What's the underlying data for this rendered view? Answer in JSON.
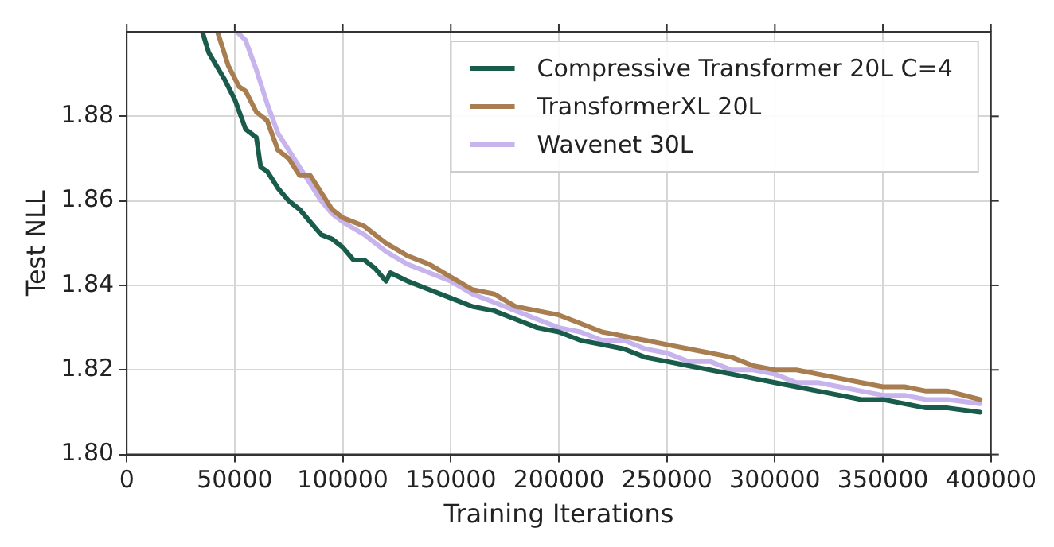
{
  "chart_data": {
    "type": "line",
    "xlabel": "Training Iterations",
    "ylabel": "Test NLL",
    "xlim": [
      0,
      400000
    ],
    "ylim": [
      1.8,
      1.9
    ],
    "xticks": [
      0,
      50000,
      100000,
      150000,
      200000,
      250000,
      300000,
      350000,
      400000
    ],
    "yticks": [
      {
        "value": 1.8,
        "label": "1.80"
      },
      {
        "value": 1.82,
        "label": "1.82"
      },
      {
        "value": 1.84,
        "label": "1.84"
      },
      {
        "value": 1.86,
        "label": "1.86"
      },
      {
        "value": 1.88,
        "label": "1.88"
      }
    ],
    "grid": true,
    "legend": "top right",
    "marker": "none",
    "line_style": "solid",
    "series": [
      {
        "name": "Compressive Transformer 20L C=4",
        "color": "#1a5c4b",
        "x": [
          35000,
          38000,
          45000,
          50000,
          55000,
          60000,
          62000,
          65000,
          70000,
          75000,
          80000,
          85000,
          90000,
          95000,
          100000,
          105000,
          110000,
          115000,
          120000,
          122000,
          130000,
          140000,
          150000,
          160000,
          170000,
          180000,
          190000,
          200000,
          210000,
          220000,
          230000,
          240000,
          250000,
          260000,
          270000,
          280000,
          290000,
          300000,
          310000,
          320000,
          330000,
          340000,
          350000,
          360000,
          370000,
          380000,
          395000
        ],
        "values": [
          1.9,
          1.895,
          1.889,
          1.884,
          1.877,
          1.875,
          1.868,
          1.867,
          1.863,
          1.86,
          1.858,
          1.855,
          1.852,
          1.851,
          1.849,
          1.846,
          1.846,
          1.844,
          1.841,
          1.843,
          1.841,
          1.839,
          1.837,
          1.835,
          1.834,
          1.832,
          1.83,
          1.829,
          1.827,
          1.826,
          1.825,
          1.823,
          1.822,
          1.821,
          1.82,
          1.819,
          1.818,
          1.817,
          1.816,
          1.815,
          1.814,
          1.813,
          1.813,
          1.812,
          1.811,
          1.811,
          1.81
        ]
      },
      {
        "name": "TransformerXL 20L",
        "color": "#a87d4f",
        "x": [
          42000,
          47000,
          52000,
          55000,
          60000,
          65000,
          70000,
          75000,
          80000,
          85000,
          90000,
          95000,
          100000,
          110000,
          120000,
          130000,
          140000,
          150000,
          160000,
          170000,
          180000,
          190000,
          200000,
          210000,
          220000,
          230000,
          240000,
          250000,
          260000,
          270000,
          280000,
          290000,
          300000,
          310000,
          320000,
          330000,
          340000,
          350000,
          360000,
          370000,
          380000,
          395000
        ],
        "values": [
          1.9,
          1.892,
          1.887,
          1.886,
          1.881,
          1.879,
          1.872,
          1.87,
          1.866,
          1.866,
          1.862,
          1.858,
          1.856,
          1.854,
          1.85,
          1.847,
          1.845,
          1.842,
          1.839,
          1.838,
          1.835,
          1.834,
          1.833,
          1.831,
          1.829,
          1.828,
          1.827,
          1.826,
          1.825,
          1.824,
          1.823,
          1.821,
          1.82,
          1.82,
          1.819,
          1.818,
          1.817,
          1.816,
          1.816,
          1.815,
          1.815,
          1.813
        ]
      },
      {
        "name": "Wavenet 30L",
        "color": "#c8b4ec",
        "x": [
          51000,
          55000,
          60000,
          65000,
          70000,
          75000,
          80000,
          85000,
          90000,
          95000,
          100000,
          110000,
          120000,
          130000,
          140000,
          150000,
          160000,
          170000,
          180000,
          190000,
          200000,
          210000,
          220000,
          230000,
          240000,
          250000,
          260000,
          270000,
          280000,
          290000,
          300000,
          310000,
          320000,
          330000,
          340000,
          350000,
          360000,
          370000,
          380000,
          395000
        ],
        "values": [
          1.9,
          1.898,
          1.891,
          1.883,
          1.876,
          1.872,
          1.868,
          1.864,
          1.86,
          1.857,
          1.855,
          1.852,
          1.848,
          1.845,
          1.843,
          1.841,
          1.838,
          1.836,
          1.834,
          1.832,
          1.83,
          1.829,
          1.827,
          1.827,
          1.825,
          1.824,
          1.822,
          1.822,
          1.82,
          1.82,
          1.819,
          1.817,
          1.817,
          1.816,
          1.815,
          1.814,
          1.814,
          1.813,
          1.813,
          1.812
        ]
      }
    ]
  }
}
